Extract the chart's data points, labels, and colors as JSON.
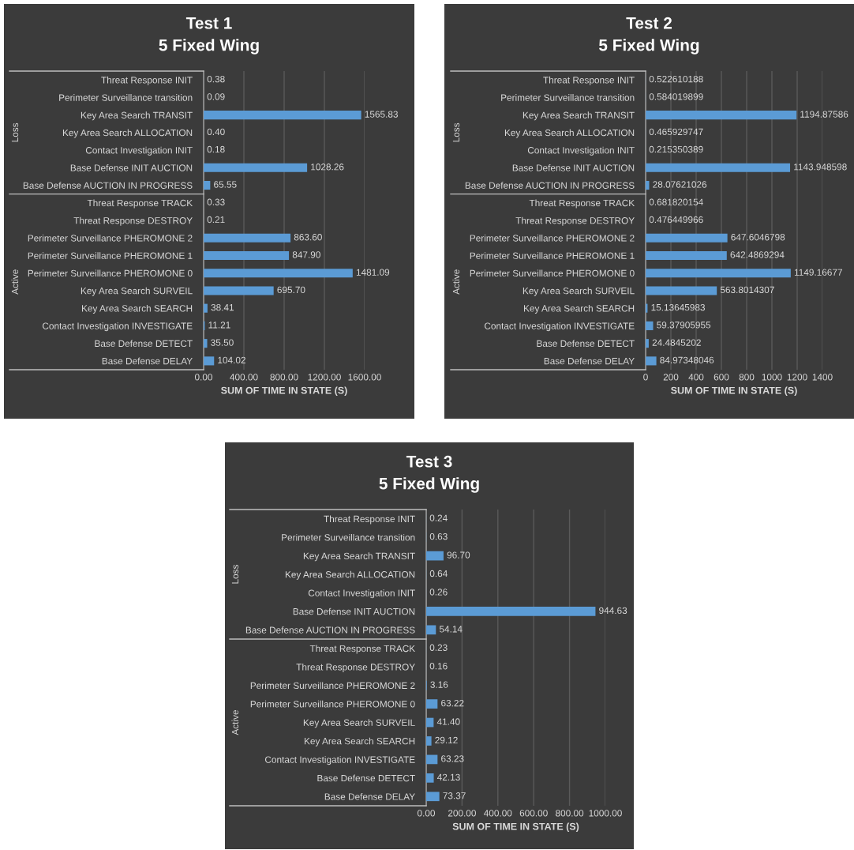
{
  "chart_data": [
    {
      "type": "bar",
      "orientation": "horizontal",
      "title": "Test 1",
      "subtitle": "5 Fixed Wing",
      "xlabel": "SUM OF TIME IN STATE (S)",
      "categories": [
        "Threat Response INIT",
        "Perimeter Surveillance transition",
        "Key Area Search TRANSIT",
        "Key Area Search ALLOCATION",
        "Contact Investigation INIT",
        "Base Defense INIT AUCTION",
        "Base Defense AUCTION IN PROGRESS",
        "Threat Response TRACK",
        "Threat Response DESTROY",
        "Perimeter Surveillance PHEROMONE 2",
        "Perimeter Surveillance PHEROMONE 1",
        "Perimeter Surveillance PHEROMONE 0",
        "Key Area Search SURVEIL",
        "Key Area Search SEARCH",
        "Contact Investigation INVESTIGATE",
        "Base Defense DETECT",
        "Base Defense DELAY"
      ],
      "values": [
        0.38,
        0.09,
        1565.83,
        0.4,
        0.18,
        1028.26,
        65.55,
        0.33,
        0.21,
        863.6,
        847.9,
        1481.09,
        695.7,
        38.41,
        11.21,
        35.5,
        104.02
      ],
      "value_labels": [
        "0.38",
        "0.09",
        "1565.83",
        "0.40",
        "0.18",
        "1028.26",
        "65.55",
        "0.33",
        "0.21",
        "863.60",
        "847.90",
        "1481.09",
        "695.70",
        "38.41",
        "11.21",
        "35.50",
        "104.02"
      ],
      "color": "#5b9bd5",
      "xlim": [
        0,
        1600
      ],
      "xticks": [
        {
          "value": 0,
          "label": "0.00"
        },
        {
          "value": 400,
          "label": "400.00"
        },
        {
          "value": 800,
          "label": "800.00"
        },
        {
          "value": 1200,
          "label": "1200.00"
        },
        {
          "value": 1600,
          "label": "1600.00"
        }
      ],
      "grid": "x",
      "annotations": [
        "Loss",
        "Active"
      ]
    },
    {
      "type": "bar",
      "orientation": "horizontal",
      "title": "Test 2",
      "subtitle": "5 Fixed Wing",
      "xlabel": "SUM OF TIME IN STATE (S)",
      "categories": [
        "Threat Response INIT",
        "Perimeter Surveillance transition",
        "Key Area Search TRANSIT",
        "Key Area Search ALLOCATION",
        "Contact Investigation INIT",
        "Base Defense INIT AUCTION",
        "Base Defense AUCTION IN PROGRESS",
        "Threat Response TRACK",
        "Threat Response DESTROY",
        "Perimeter Surveillance PHEROMONE 2",
        "Perimeter Surveillance PHEROMONE 1",
        "Perimeter Surveillance PHEROMONE 0",
        "Key Area Search SURVEIL",
        "Key Area Search SEARCH",
        "Contact Investigation INVESTIGATE",
        "Base Defense DETECT",
        "Base Defense DELAY"
      ],
      "values": [
        0.522610188,
        0.584019899,
        1194.87586,
        0.465929747,
        0.215350389,
        1143.948598,
        28.07621026,
        0.681820154,
        0.476449966,
        647.6046798,
        642.4869294,
        1149.16677,
        563.8014307,
        15.13645983,
        59.37905955,
        24.4845202,
        84.97348046
      ],
      "value_labels": [
        "0.522610188",
        "0.584019899",
        "1194.87586",
        "0.465929747",
        "0.215350389",
        "1143.948598",
        "28.07621026",
        "0.681820154",
        "0.476449966",
        "647.6046798",
        "642.4869294",
        "1149.16677",
        "563.8014307",
        "15.13645983",
        "59.37905955",
        "24.4845202",
        "84.97348046"
      ],
      "color": "#5b9bd5",
      "xlim": [
        0,
        1400
      ],
      "xticks": [
        0,
        200,
        400,
        600,
        800,
        1000,
        1200,
        1400
      ],
      "grid": "x",
      "annotations": [
        "Loss",
        "Active"
      ]
    },
    {
      "type": "bar",
      "orientation": "horizontal",
      "title": "Test 3",
      "subtitle": "5 Fixed Wing",
      "xlabel": "SUM OF TIME IN STATE (S)",
      "categories": [
        "Threat Response INIT",
        "Perimeter Surveillance transition",
        "Key Area Search TRANSIT",
        "Key Area Search ALLOCATION",
        "Contact Investigation INIT",
        "Base Defense INIT AUCTION",
        "Base Defense AUCTION IN PROGRESS",
        "Threat Response TRACK",
        "Threat Response DESTROY",
        "Perimeter Surveillance PHEROMONE 2",
        "Perimeter Surveillance PHEROMONE 0",
        "Key Area Search SURVEIL",
        "Key Area Search SEARCH",
        "Contact Investigation INVESTIGATE",
        "Base Defense DETECT",
        "Base Defense DELAY"
      ],
      "values": [
        0.24,
        0.63,
        96.7,
        0.64,
        0.26,
        944.63,
        54.14,
        0.23,
        0.16,
        3.16,
        63.22,
        41.4,
        29.12,
        63.23,
        42.13,
        73.37
      ],
      "value_labels": [
        "0.24",
        "0.63",
        "96.70",
        "0.64",
        "0.26",
        "944.63",
        "54.14",
        "0.23",
        "0.16",
        "3.16",
        "63.22",
        "41.40",
        "29.12",
        "63.23",
        "42.13",
        "73.37"
      ],
      "color": "#5b9bd5",
      "xlim": [
        0,
        1000
      ],
      "xticks": [
        {
          "value": 0,
          "label": "0.00"
        },
        {
          "value": 200,
          "label": "200.00"
        },
        {
          "value": 400,
          "label": "400.00"
        },
        {
          "value": 600,
          "label": "600.00"
        },
        {
          "value": 800,
          "label": "800.00"
        },
        {
          "value": 1000,
          "label": "1000.00"
        }
      ],
      "grid": "x",
      "annotations": [
        "Loss",
        "Active"
      ]
    }
  ]
}
